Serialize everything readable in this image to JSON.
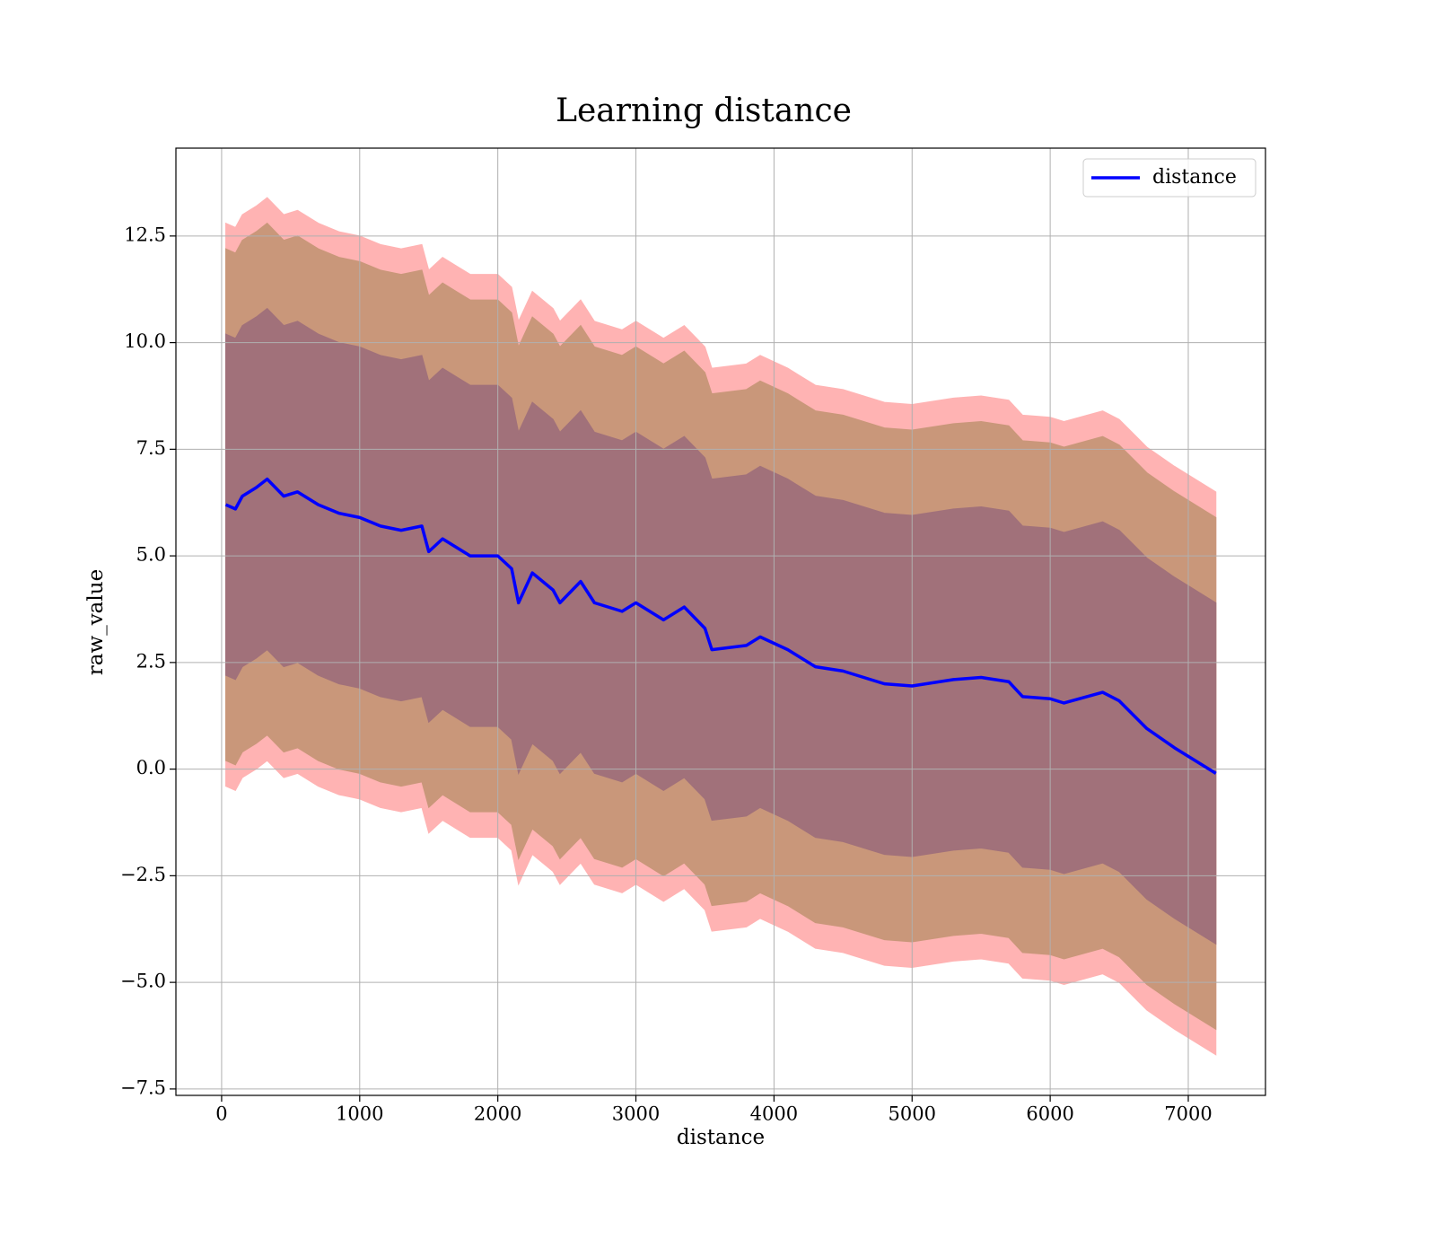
{
  "chart_data": {
    "type": "line",
    "title": "Learning distance",
    "xlabel": "distance",
    "ylabel": "raw_value",
    "x": [
      30,
      100,
      150,
      250,
      330,
      450,
      550,
      700,
      850,
      1000,
      1150,
      1300,
      1450,
      1500,
      1600,
      1800,
      2000,
      2100,
      2150,
      2250,
      2400,
      2450,
      2600,
      2700,
      2900,
      3000,
      3200,
      3350,
      3500,
      3550,
      3800,
      3900,
      4100,
      4300,
      4500,
      4800,
      5000,
      5300,
      5500,
      5700,
      5800,
      6000,
      6100,
      6380,
      6500,
      6700,
      6900,
      7200
    ],
    "series": [
      {
        "name": "distance",
        "color": "#0000ff",
        "values": [
          6.2,
          6.1,
          6.4,
          6.6,
          6.8,
          6.4,
          6.5,
          6.2,
          6.0,
          5.9,
          5.7,
          5.6,
          5.7,
          5.1,
          5.4,
          5.0,
          5.0,
          4.7,
          3.9,
          4.6,
          4.2,
          3.9,
          4.4,
          3.9,
          3.7,
          3.9,
          3.5,
          3.8,
          3.3,
          2.8,
          2.9,
          3.1,
          2.8,
          2.4,
          2.3,
          2.0,
          1.95,
          2.1,
          2.15,
          2.05,
          1.7,
          1.65,
          1.55,
          1.8,
          1.6,
          0.95,
          0.5,
          -0.1
        ]
      }
    ],
    "bands": [
      {
        "color": "#ffb3b3",
        "upper": [
          12.8,
          12.7,
          13.0,
          13.2,
          13.4,
          13.0,
          13.1,
          12.8,
          12.6,
          12.5,
          12.3,
          12.2,
          12.3,
          11.7,
          12.0,
          11.6,
          11.6,
          11.3,
          10.5,
          11.2,
          10.8,
          10.5,
          11.0,
          10.5,
          10.3,
          10.5,
          10.1,
          10.4,
          9.9,
          9.4,
          9.5,
          9.7,
          9.4,
          9.0,
          8.9,
          8.6,
          8.55,
          8.7,
          8.75,
          8.65,
          8.3,
          8.25,
          8.15,
          8.4,
          8.2,
          7.55,
          7.1,
          6.5
        ],
        "lower": [
          -0.4,
          -0.5,
          -0.2,
          0.0,
          0.2,
          -0.2,
          -0.1,
          -0.4,
          -0.6,
          -0.7,
          -0.9,
          -1.0,
          -0.9,
          -1.5,
          -1.2,
          -1.6,
          -1.6,
          -1.9,
          -2.7,
          -2.0,
          -2.4,
          -2.7,
          -2.2,
          -2.7,
          -2.9,
          -2.7,
          -3.1,
          -2.8,
          -3.3,
          -3.8,
          -3.7,
          -3.5,
          -3.8,
          -4.2,
          -4.3,
          -4.6,
          -4.65,
          -4.5,
          -4.45,
          -4.55,
          -4.9,
          -4.95,
          -5.05,
          -4.8,
          -5.0,
          -5.65,
          -6.1,
          -6.7
        ]
      },
      {
        "color": "#c9977a",
        "upper": [
          12.2,
          12.1,
          12.4,
          12.6,
          12.8,
          12.4,
          12.5,
          12.2,
          12.0,
          11.9,
          11.7,
          11.6,
          11.7,
          11.1,
          11.4,
          11.0,
          11.0,
          10.7,
          9.9,
          10.6,
          10.2,
          9.9,
          10.4,
          9.9,
          9.7,
          9.9,
          9.5,
          9.8,
          9.3,
          8.8,
          8.9,
          9.1,
          8.8,
          8.4,
          8.3,
          8.0,
          7.95,
          8.1,
          8.15,
          8.05,
          7.7,
          7.65,
          7.55,
          7.8,
          7.6,
          6.95,
          6.5,
          5.9
        ],
        "lower": [
          0.2,
          0.1,
          0.4,
          0.6,
          0.8,
          0.4,
          0.5,
          0.2,
          0.0,
          -0.1,
          -0.3,
          -0.4,
          -0.3,
          -0.9,
          -0.6,
          -1.0,
          -1.0,
          -1.3,
          -2.1,
          -1.4,
          -1.8,
          -2.1,
          -1.6,
          -2.1,
          -2.3,
          -2.1,
          -2.5,
          -2.2,
          -2.7,
          -3.2,
          -3.1,
          -2.9,
          -3.2,
          -3.6,
          -3.7,
          -4.0,
          -4.05,
          -3.9,
          -3.85,
          -3.95,
          -4.3,
          -4.35,
          -4.45,
          -4.2,
          -4.4,
          -5.05,
          -5.5,
          -6.1
        ]
      },
      {
        "color": "#a1717a",
        "upper": [
          10.2,
          10.1,
          10.4,
          10.6,
          10.8,
          10.4,
          10.5,
          10.2,
          10.0,
          9.9,
          9.7,
          9.6,
          9.7,
          9.1,
          9.4,
          9.0,
          9.0,
          8.7,
          7.9,
          8.6,
          8.2,
          7.9,
          8.4,
          7.9,
          7.7,
          7.9,
          7.5,
          7.8,
          7.3,
          6.8,
          6.9,
          7.1,
          6.8,
          6.4,
          6.3,
          6.0,
          5.95,
          6.1,
          6.15,
          6.05,
          5.7,
          5.65,
          5.55,
          5.8,
          5.6,
          4.95,
          4.5,
          3.9
        ],
        "lower": [
          2.2,
          2.1,
          2.4,
          2.6,
          2.8,
          2.4,
          2.5,
          2.2,
          2.0,
          1.9,
          1.7,
          1.6,
          1.7,
          1.1,
          1.4,
          1.0,
          1.0,
          0.7,
          -0.1,
          0.6,
          0.2,
          -0.1,
          0.4,
          -0.1,
          -0.3,
          -0.1,
          -0.5,
          -0.2,
          -0.7,
          -1.2,
          -1.1,
          -0.9,
          -1.2,
          -1.6,
          -1.7,
          -2.0,
          -2.05,
          -1.9,
          -1.85,
          -1.95,
          -2.3,
          -2.35,
          -2.45,
          -2.2,
          -2.4,
          -3.05,
          -3.5,
          -4.1
        ]
      }
    ],
    "xlim": [
      -331,
      7559
    ],
    "ylim": [
      -7.65,
      14.56
    ],
    "xticks": [
      0,
      1000,
      2000,
      3000,
      4000,
      5000,
      6000,
      7000
    ],
    "yticks": [
      {
        "value": -7.5,
        "label": "−7.5"
      },
      {
        "value": -5,
        "label": "−5.0"
      },
      {
        "value": -2.5,
        "label": "−2.5"
      },
      {
        "value": 0,
        "label": "0.0"
      },
      2.5,
      {
        "value": 5,
        "label": "5.0"
      },
      7.5,
      {
        "value": 10,
        "label": "10.0"
      },
      12.5
    ],
    "grid": true,
    "legend": "upper right"
  }
}
